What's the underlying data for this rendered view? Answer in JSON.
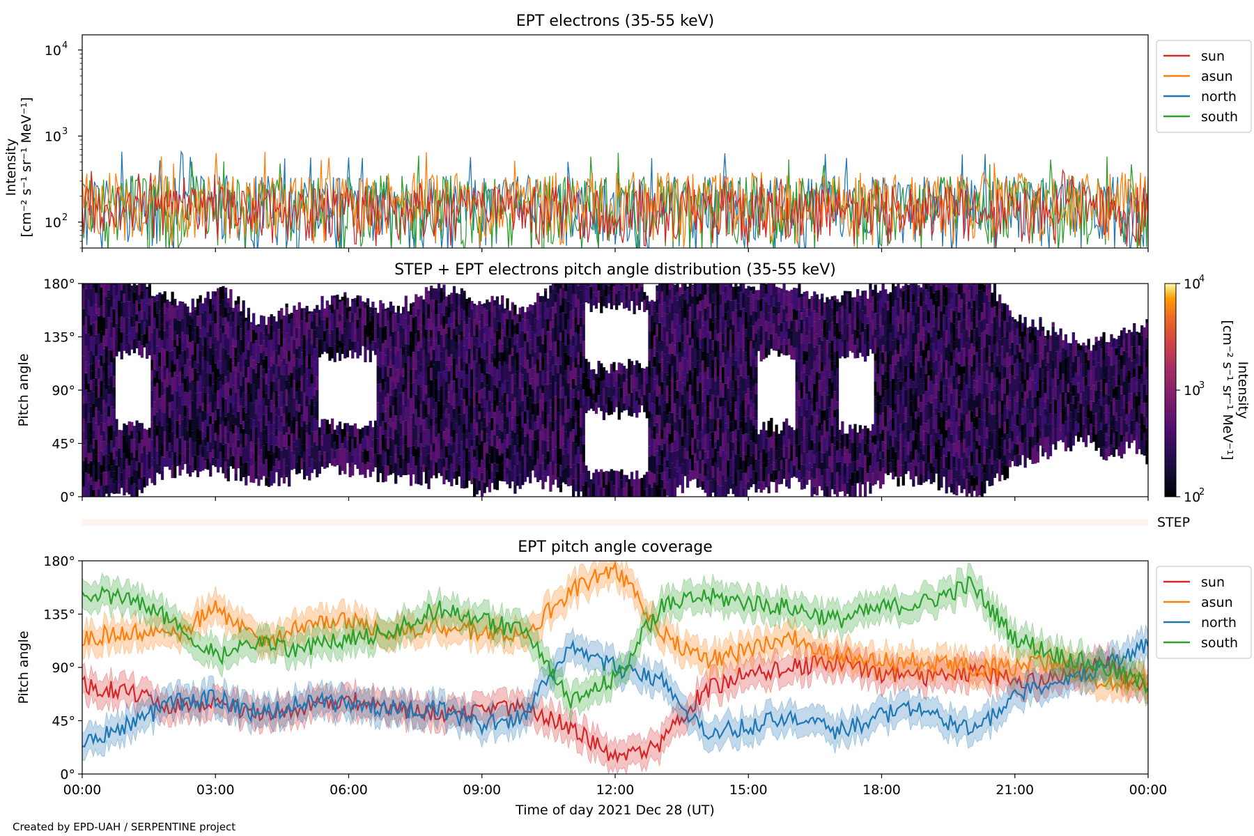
{
  "colors": {
    "sun": "#d62728",
    "asun": "#ff7f0e",
    "north": "#1f77b4",
    "south": "#2ca02c"
  },
  "figure_footer": "Created by EPD-UAH / SERPENTINE project",
  "xaxis": {
    "label": "Time of day 2021 Dec 28 (UT)",
    "ticks": [
      "00:00",
      "03:00",
      "06:00",
      "09:00",
      "12:00",
      "15:00",
      "18:00",
      "21:00",
      "00:00"
    ],
    "range_hours": [
      0,
      24
    ]
  },
  "chart_data": [
    {
      "type": "line",
      "title": "EPT electrons (35-55 keV)",
      "ylabel": "Intensity",
      "yunit": "[cm⁻² s⁻¹ sr⁻¹ MeV⁻¹]",
      "yscale": "log",
      "ylim": [
        50,
        15000
      ],
      "yticks": [
        {
          "value": 100,
          "base": "10",
          "exp": "2"
        },
        {
          "value": 1000,
          "base": "10",
          "exp": "3"
        },
        {
          "value": 10000,
          "base": "10",
          "exp": "4"
        }
      ],
      "legend_placement": "outside-right",
      "series": [
        {
          "name": "north",
          "color": "#1f77b4",
          "typical": [
            40,
            350
          ],
          "peak": 660
        },
        {
          "name": "south",
          "color": "#2ca02c",
          "typical": [
            40,
            350
          ],
          "peak": 640
        },
        {
          "name": "asun",
          "color": "#ff7f0e",
          "typical": [
            50,
            380
          ],
          "peak": 670
        },
        {
          "name": "sun",
          "color": "#d62728",
          "typical": [
            50,
            260
          ],
          "peak": 400
        }
      ]
    },
    {
      "type": "heatmap",
      "title": "STEP + EPT electrons pitch angle distribution (35-55 keV)",
      "ylabel": "Pitch angle",
      "ylim": [
        0,
        180
      ],
      "yticks": [
        "0°",
        "45°",
        "90°",
        "135°",
        "180°"
      ],
      "colorbar": {
        "label": "Intensity",
        "unit": "[cm⁻² s⁻¹ sr⁻¹ MeV⁻¹]",
        "scale": "log",
        "range": [
          100,
          10000
        ],
        "colormap": "inferno",
        "ticks": [
          {
            "value": 100,
            "base": "10",
            "exp": "2"
          },
          {
            "value": 1000,
            "base": "10",
            "exp": "3"
          },
          {
            "value": 10000,
            "base": "10",
            "exp": "4"
          }
        ]
      },
      "gap_bands_hours": [
        [
          0.7,
          1.5
        ],
        [
          5.3,
          6.6
        ],
        [
          11.3,
          12.7
        ],
        [
          15.2,
          16.0
        ],
        [
          17.0,
          17.8
        ]
      ],
      "step_strip_label": "STEP"
    },
    {
      "type": "area",
      "title": "EPT pitch angle coverage",
      "ylabel": "Pitch angle",
      "ylim": [
        0,
        180
      ],
      "yticks": [
        "0°",
        "45°",
        "90°",
        "135°",
        "180°"
      ],
      "legend_placement": "outside-right",
      "hours": [
        0,
        1,
        2,
        3,
        4,
        5,
        6,
        7,
        8,
        9,
        10,
        11,
        12,
        13,
        14,
        15,
        16,
        17,
        18,
        19,
        20,
        21,
        22,
        23,
        24
      ],
      "series": [
        {
          "name": "sun",
          "color": "#d62728",
          "values": [
            75,
            70,
            58,
            60,
            50,
            55,
            62,
            56,
            50,
            55,
            55,
            40,
            12,
            25,
            70,
            85,
            90,
            95,
            85,
            80,
            85,
            80,
            80,
            95,
            70
          ]
        },
        {
          "name": "asun",
          "color": "#ff7f0e",
          "values": [
            115,
            120,
            115,
            140,
            110,
            125,
            130,
            120,
            125,
            120,
            120,
            155,
            175,
            120,
            95,
            105,
            115,
            100,
            95,
            95,
            90,
            90,
            95,
            75,
            80
          ]
        },
        {
          "name": "north",
          "color": "#1f77b4",
          "values": [
            25,
            40,
            60,
            65,
            50,
            60,
            60,
            55,
            55,
            40,
            50,
            110,
            90,
            80,
            35,
            40,
            50,
            35,
            50,
            55,
            35,
            65,
            80,
            90,
            110
          ]
        },
        {
          "name": "south",
          "color": "#2ca02c",
          "values": [
            150,
            150,
            130,
            100,
            110,
            105,
            115,
            120,
            140,
            130,
            120,
            60,
            80,
            140,
            150,
            145,
            140,
            130,
            140,
            145,
            160,
            115,
            100,
            90,
            75
          ]
        }
      ],
      "band_halfwidth_deg": 12
    }
  ]
}
